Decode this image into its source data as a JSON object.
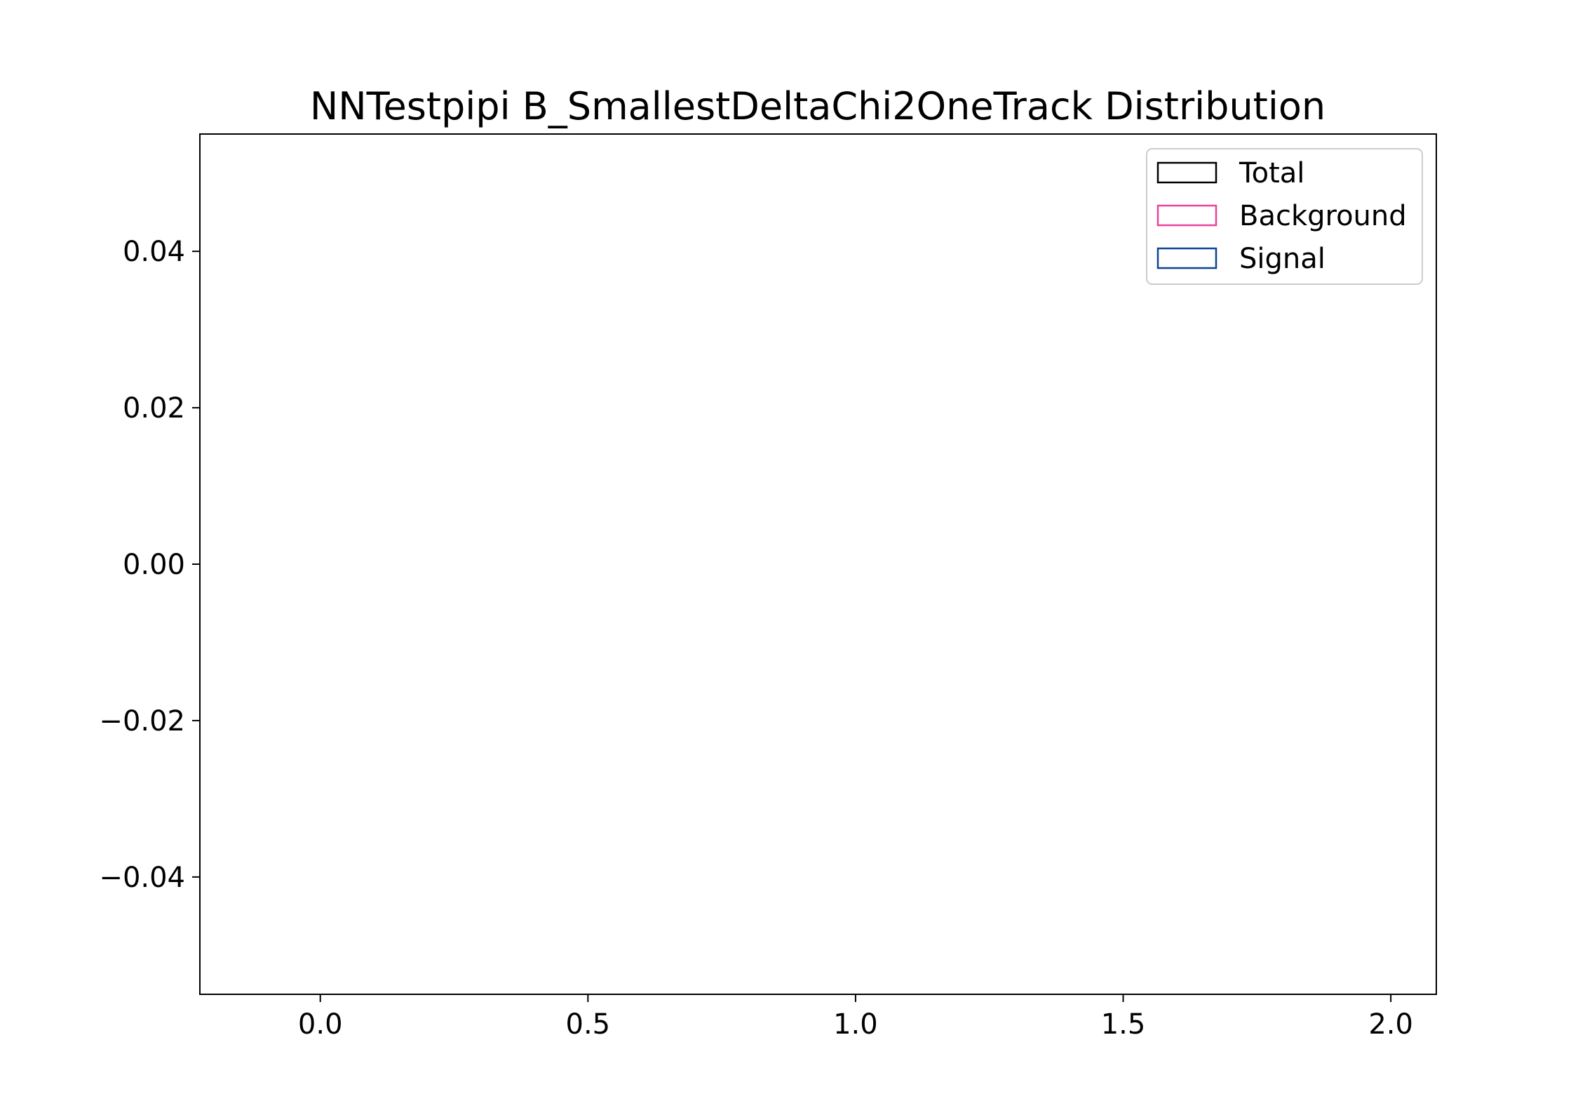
{
  "chart_data": {
    "type": "bar",
    "title": "NNTestpipi B_SmallestDeltaChi2OneTrack Distribution",
    "xlabel": "",
    "ylabel": "",
    "xlim": [
      -0.225,
      2.085
    ],
    "ylim": [
      -0.055,
      0.055
    ],
    "x_ticks": [
      0.0,
      0.5,
      1.0,
      1.5,
      2.0
    ],
    "x_tick_labels": [
      "0.0",
      "0.5",
      "1.0",
      "1.5",
      "2.0"
    ],
    "y_ticks": [
      0.04,
      0.02,
      0.0,
      -0.02,
      -0.04
    ],
    "y_tick_labels": [
      "0.04",
      "0.02",
      "0.00",
      "−0.02",
      "−0.04"
    ],
    "grid": false,
    "legend_position": "top-right",
    "series": [
      {
        "name": "Total",
        "color": "#000000",
        "values": []
      },
      {
        "name": "Background",
        "color": "#e8449a",
        "values": []
      },
      {
        "name": "Signal",
        "color": "#0d4494",
        "values": []
      }
    ]
  }
}
